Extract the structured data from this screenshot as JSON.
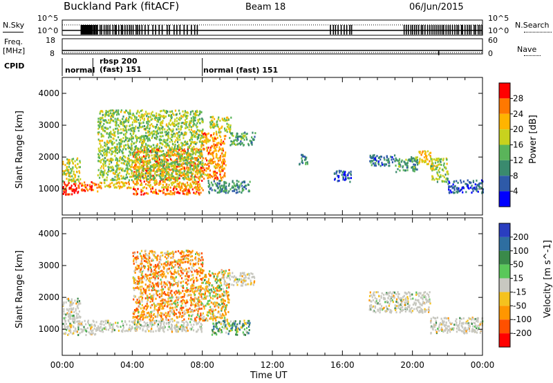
{
  "header": {
    "station": "Buckland Park (fitACF)",
    "beam": "Beam 18",
    "date": "06/Jun/2015"
  },
  "nsky_panel": {
    "left_label": "N.Sky",
    "left_ticks": [
      "10^5",
      "10^0"
    ],
    "right_label": "N.Search",
    "right_ticks": [
      "10^5",
      "10^0"
    ]
  },
  "freq_panel": {
    "left_label_line1": "Freq.",
    "left_label_line2": "[MHz]",
    "left_ticks": [
      "18",
      "8"
    ],
    "right_label": "Nave",
    "right_ticks": [
      "60",
      "0"
    ]
  },
  "cpid_panel": {
    "label": "CPID",
    "segments": [
      {
        "text": "normal",
        "start_hour": 0.0,
        "end_hour": 1.75
      },
      {
        "text": "rbsp 200",
        "start_hour": 1.75,
        "end_hour": 8.0
      },
      {
        "text": "(fast) 151",
        "start_hour": 1.75,
        "end_hour": 8.0
      },
      {
        "text": "normal (fast) 151",
        "start_hour": 8.0,
        "end_hour": 24.0
      }
    ]
  },
  "colors": {
    "power": [
      "#0000ff",
      "#2e5aa8",
      "#3a8a6e",
      "#5ab45a",
      "#c8d21e",
      "#ffb400",
      "#ff7800",
      "#ff0000"
    ],
    "velocity": [
      "#2a3ebf",
      "#2e6ea0",
      "#3a8a4a",
      "#5ac85a",
      "#c8c8c0",
      "#f5c21e",
      "#ff9600",
      "#ff5000",
      "#ff0000"
    ]
  },
  "chart_data": [
    {
      "type": "heatmap",
      "title": "Power",
      "xlabel": "",
      "ylabel": "Slant Range [km]",
      "xlim": [
        0,
        24
      ],
      "ylim": [
        180,
        4500
      ],
      "yticks": [
        "1000",
        "2000",
        "3000",
        "4000"
      ],
      "colorbar": {
        "label": "Power [dB]",
        "ticks": [
          "4",
          "8",
          "12",
          "16",
          "20",
          "24",
          "28"
        ],
        "range": [
          0,
          32
        ]
      },
      "regions": [
        {
          "x": [
            0.0,
            1.0
          ],
          "y": [
            850,
            1250
          ],
          "value": 30
        },
        {
          "x": [
            0.0,
            1.0
          ],
          "y": [
            1250,
            2000
          ],
          "value": 18
        },
        {
          "x": [
            1.0,
            2.0
          ],
          "y": [
            950,
            1250
          ],
          "value": 26
        },
        {
          "x": [
            2.0,
            8.0
          ],
          "y": [
            1050,
            1250
          ],
          "value": 22
        },
        {
          "x": [
            4.0,
            8.0
          ],
          "y": [
            1250,
            2300
          ],
          "value": 25
        },
        {
          "x": [
            4.0,
            8.0
          ],
          "y": [
            850,
            1050
          ],
          "value": 27
        },
        {
          "x": [
            2.0,
            8.0
          ],
          "y": [
            1300,
            3500
          ],
          "value": 16
        },
        {
          "x": [
            8.0,
            9.3
          ],
          "y": [
            1300,
            2800
          ],
          "value": 24
        },
        {
          "x": [
            8.4,
            9.6
          ],
          "y": [
            2800,
            3300
          ],
          "value": 18
        },
        {
          "x": [
            8.3,
            10.7
          ],
          "y": [
            900,
            1300
          ],
          "value": 10
        },
        {
          "x": [
            9.5,
            11.0
          ],
          "y": [
            2400,
            2800
          ],
          "value": 12
        },
        {
          "x": [
            13.5,
            14.0
          ],
          "y": [
            1800,
            2100
          ],
          "value": 10
        },
        {
          "x": [
            15.5,
            16.5
          ],
          "y": [
            1250,
            1600
          ],
          "value": 6
        },
        {
          "x": [
            17.5,
            19.0
          ],
          "y": [
            1750,
            2100
          ],
          "value": 8
        },
        {
          "x": [
            19.0,
            20.3
          ],
          "y": [
            1550,
            2050
          ],
          "value": 12
        },
        {
          "x": [
            20.3,
            21.0
          ],
          "y": [
            1800,
            2250
          ],
          "value": 22
        },
        {
          "x": [
            21.0,
            22.0
          ],
          "y": [
            1250,
            2000
          ],
          "value": 16
        },
        {
          "x": [
            22.0,
            24.0
          ],
          "y": [
            900,
            1300
          ],
          "value": 6
        }
      ]
    },
    {
      "type": "heatmap",
      "title": "Velocity",
      "xlabel": "Time UT",
      "ylabel": "Slant Range [km]",
      "xlim": [
        0,
        24
      ],
      "ylim": [
        180,
        4500
      ],
      "xticks": [
        "00:00",
        "04:00",
        "08:00",
        "12:00",
        "16:00",
        "20:00",
        "00:00"
      ],
      "yticks": [
        "1000",
        "2000",
        "3000",
        "4000"
      ],
      "colorbar": {
        "label": "Velocity [m s^-1]",
        "ticks": [
          "200",
          "100",
          "50",
          "15",
          "-15",
          "-50",
          "-100",
          "-200"
        ],
        "range": [
          -250,
          250
        ]
      },
      "regions": [
        {
          "x": [
            0.0,
            2.0
          ],
          "y": [
            850,
            1300
          ],
          "value": 0
        },
        {
          "x": [
            0.0,
            1.0
          ],
          "y": [
            1300,
            2000
          ],
          "value": 0
        },
        {
          "x": [
            2.0,
            8.0
          ],
          "y": [
            950,
            1300
          ],
          "value": 0
        },
        {
          "x": [
            4.0,
            8.0
          ],
          "y": [
            1300,
            3500
          ],
          "value": -60
        },
        {
          "x": [
            8.0,
            9.5
          ],
          "y": [
            1300,
            2900
          ],
          "value": -30
        },
        {
          "x": [
            8.5,
            10.7
          ],
          "y": [
            850,
            1300
          ],
          "value": 40
        },
        {
          "x": [
            9.5,
            11.0
          ],
          "y": [
            2400,
            2800
          ],
          "value": 0
        },
        {
          "x": [
            17.5,
            21.0
          ],
          "y": [
            1550,
            2200
          ],
          "value": 0
        },
        {
          "x": [
            21.0,
            24.0
          ],
          "y": [
            900,
            1400
          ],
          "value": 0
        }
      ]
    }
  ]
}
